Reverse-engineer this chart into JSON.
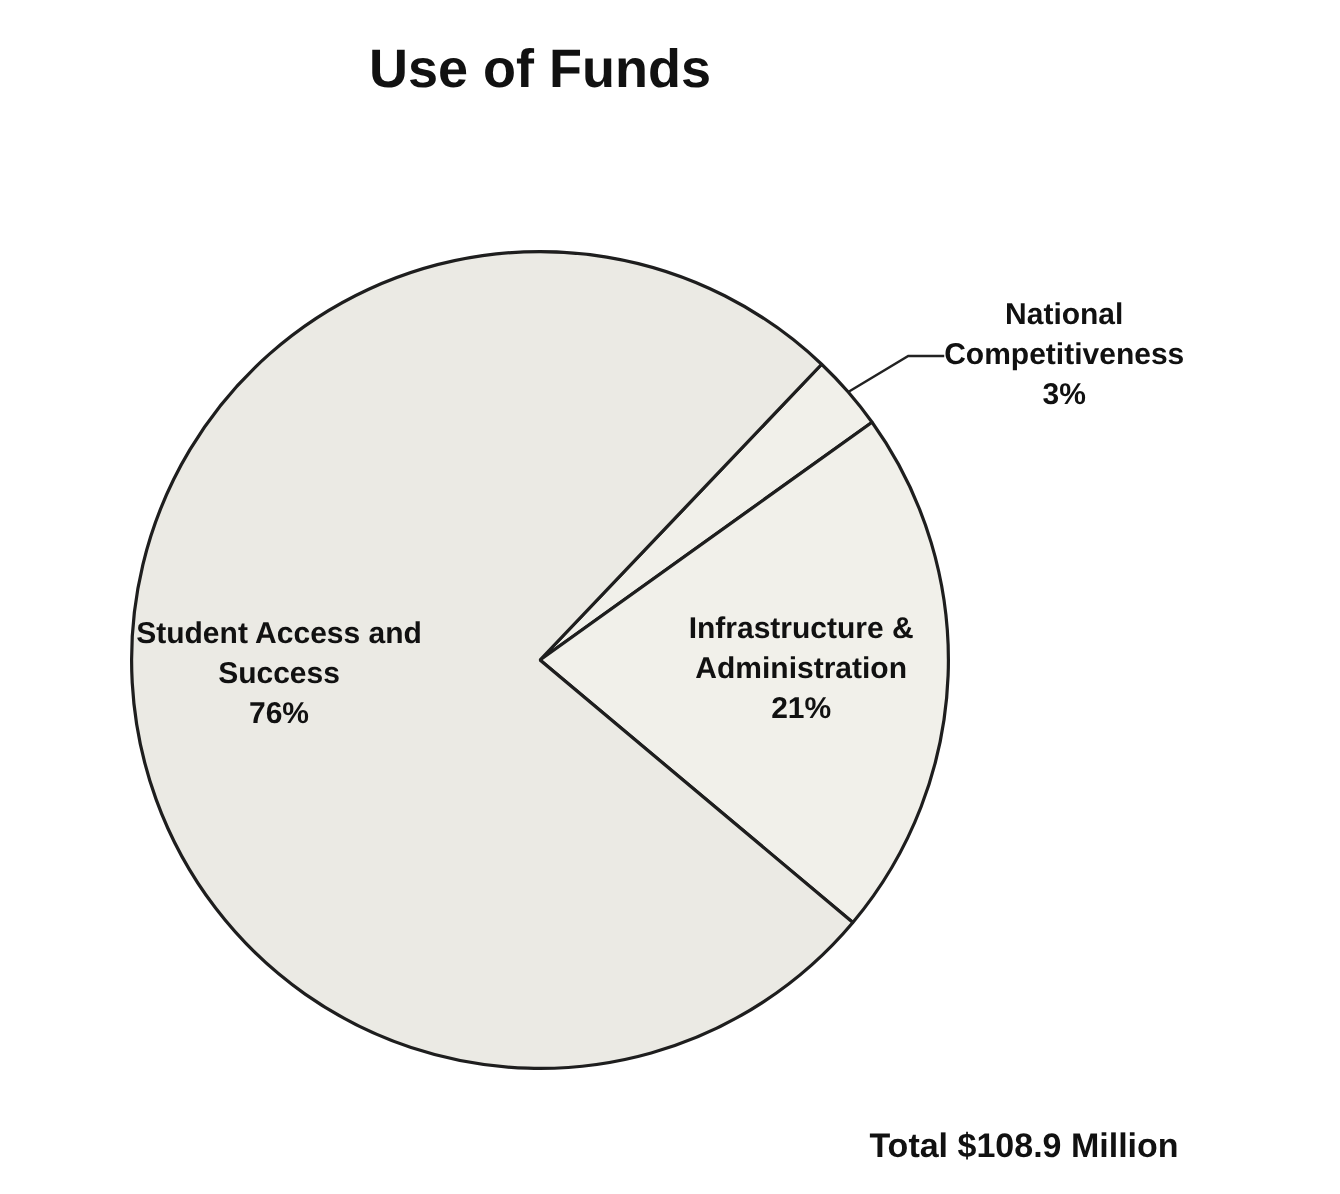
{
  "chart_data": {
    "type": "pie",
    "title": "Use of Funds",
    "categories": [
      "National Competitiveness",
      "Infrastructure & Administration",
      "Student Access and Success"
    ],
    "values": [
      3,
      21,
      76
    ],
    "colors": [
      "#f1f0ea",
      "#f1f0ea",
      "#ebeae4"
    ],
    "value_labels": [
      "3%",
      "21%",
      "76%"
    ],
    "legend": false,
    "annotations": [
      "Total $108.9 Million"
    ]
  }
}
